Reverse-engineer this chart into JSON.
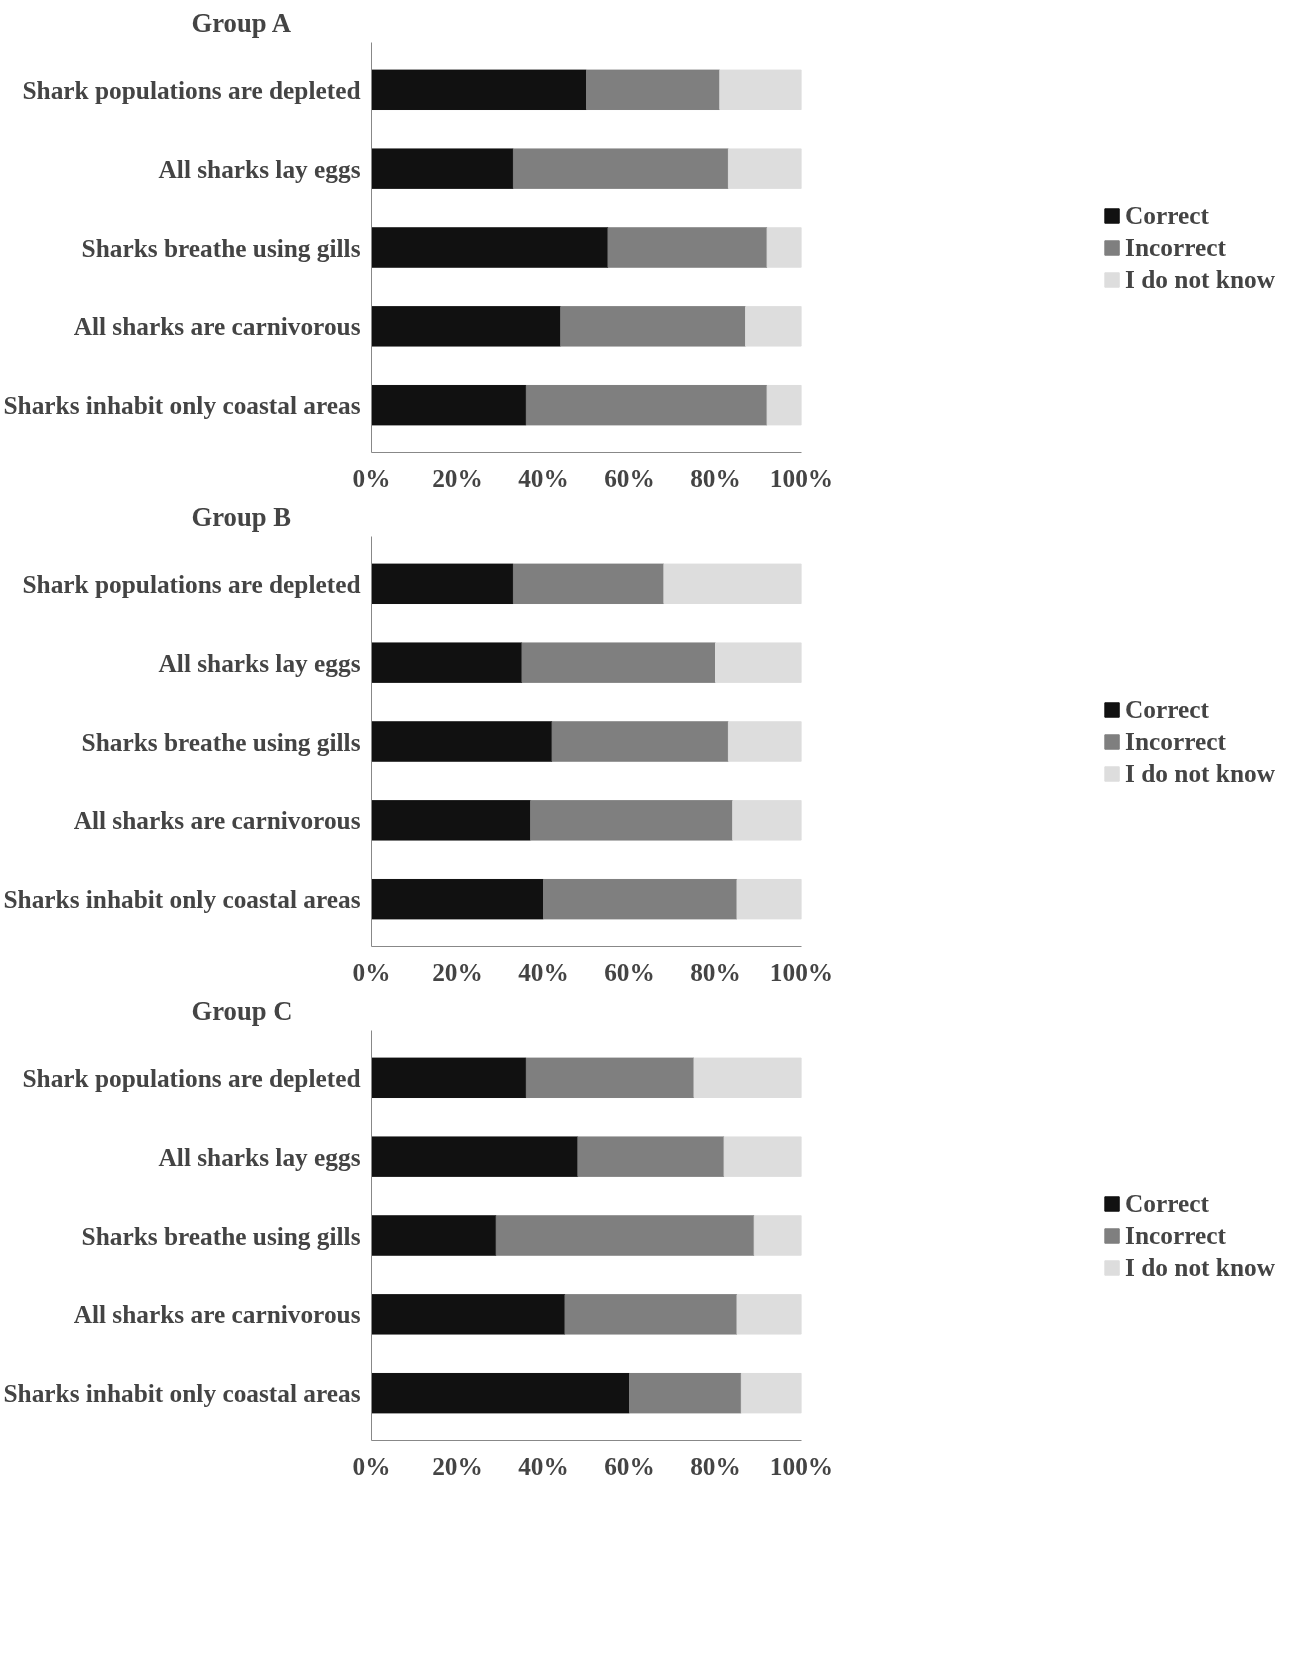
{
  "chart_data": [
    {
      "type": "bar",
      "title": "Group A",
      "orientation": "horizontal",
      "stacked": true,
      "legend": "right",
      "grid": false,
      "categories": [
        "Shark populations are depleted",
        "All sharks lay eggs",
        "Sharks breathe using gills",
        "All sharks are carnivorous",
        "Sharks inhabit only coastal areas"
      ],
      "series": [
        {
          "name": "Correct",
          "color": "#111111",
          "values": [
            50,
            33,
            55,
            44,
            36
          ]
        },
        {
          "name": "Incorrect",
          "color": "#7f7f7f",
          "values": [
            31,
            50,
            37,
            43,
            56
          ]
        },
        {
          "name": "I do not know",
          "color": "#dddddd",
          "values": [
            19,
            17,
            8,
            13,
            8
          ]
        }
      ],
      "xlim": [
        0,
        100
      ],
      "xticks": [
        {
          "value": 0,
          "label": "0%"
        },
        {
          "value": 20,
          "label": "20%"
        },
        {
          "value": 40,
          "label": "40%"
        },
        {
          "value": 60,
          "label": "60%"
        },
        {
          "value": 80,
          "label": "80%"
        },
        {
          "value": 100,
          "label": "100%"
        }
      ]
    },
    {
      "type": "bar",
      "title": "Group B",
      "orientation": "horizontal",
      "stacked": true,
      "legend": "right",
      "grid": false,
      "categories": [
        "Shark populations are depleted",
        "All sharks lay eggs",
        "Sharks breathe using gills",
        "All sharks are carnivorous",
        "Sharks inhabit only coastal areas"
      ],
      "series": [
        {
          "name": "Correct",
          "color": "#111111",
          "values": [
            33,
            35,
            42,
            37,
            40
          ]
        },
        {
          "name": "Incorrect",
          "color": "#7f7f7f",
          "values": [
            35,
            45,
            41,
            47,
            45
          ]
        },
        {
          "name": "I do not know",
          "color": "#dddddd",
          "values": [
            32,
            20,
            17,
            16,
            15
          ]
        }
      ],
      "xlim": [
        0,
        100
      ],
      "xticks": [
        {
          "value": 0,
          "label": "0%"
        },
        {
          "value": 20,
          "label": "20%"
        },
        {
          "value": 40,
          "label": "40%"
        },
        {
          "value": 60,
          "label": "60%"
        },
        {
          "value": 80,
          "label": "80%"
        },
        {
          "value": 100,
          "label": "100%"
        }
      ]
    },
    {
      "type": "bar",
      "title": "Group C",
      "orientation": "horizontal",
      "stacked": true,
      "legend": "right",
      "grid": false,
      "categories": [
        "Shark populations are depleted",
        "All sharks lay eggs",
        "Sharks breathe using gills",
        "All sharks are carnivorous",
        "Sharks inhabit only coastal areas"
      ],
      "series": [
        {
          "name": "Correct",
          "color": "#111111",
          "values": [
            36,
            48,
            29,
            45,
            60
          ]
        },
        {
          "name": "Incorrect",
          "color": "#7f7f7f",
          "values": [
            39,
            34,
            60,
            40,
            26
          ]
        },
        {
          "name": "I do not know",
          "color": "#dddddd",
          "values": [
            25,
            18,
            11,
            15,
            14
          ]
        }
      ],
      "xlim": [
        0,
        100
      ],
      "xticks": [
        {
          "value": 0,
          "label": "0%"
        },
        {
          "value": 20,
          "label": "20%"
        },
        {
          "value": 40,
          "label": "40%"
        },
        {
          "value": 60,
          "label": "60%"
        },
        {
          "value": 80,
          "label": "80%"
        },
        {
          "value": 100,
          "label": "100%"
        }
      ]
    }
  ]
}
